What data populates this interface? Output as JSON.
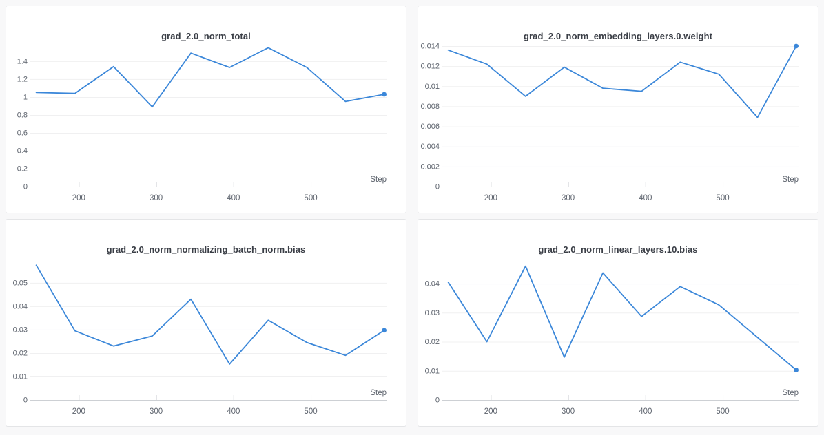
{
  "page": {
    "background": "#f8f8f9"
  },
  "panel_style": {
    "background": "#ffffff",
    "border_color": "#e4e5e7",
    "title_color": "#3a3e46",
    "tick_label_color": "#5e646e",
    "grid_color": "#f0f0f1",
    "axis_color": "#cdd0d4",
    "line_color": "#3b87d9"
  },
  "chart_data": [
    {
      "type": "line",
      "title": "grad_2.0_norm_total",
      "xlabel": "Step",
      "ylabel": "",
      "x": [
        145,
        195,
        245,
        295,
        345,
        395,
        445,
        495,
        545,
        595
      ],
      "values": [
        1.05,
        1.04,
        1.34,
        0.89,
        1.49,
        1.33,
        1.55,
        1.33,
        0.95,
        1.03
      ],
      "xlim": [
        140,
        598
      ],
      "ylim": [
        0,
        1.63
      ],
      "xticks": [
        200,
        300,
        400,
        500
      ],
      "yticks": [
        0,
        0.2,
        0.4,
        0.6,
        0.8,
        1,
        1.2,
        1.4
      ],
      "ytick_labels": [
        "0",
        "0.2",
        "0.4",
        "0.6",
        "0.8",
        "1",
        "1.2",
        "1.4"
      ],
      "grid": true,
      "legend": "none",
      "end_marker": true
    },
    {
      "type": "line",
      "title": "grad_2.0_norm_embedding_layers.0.weight",
      "xlabel": "Step",
      "ylabel": "",
      "x": [
        145,
        195,
        245,
        295,
        345,
        395,
        445,
        495,
        545,
        595
      ],
      "values": [
        0.0136,
        0.0122,
        0.009,
        0.0119,
        0.0098,
        0.0095,
        0.0124,
        0.0112,
        0.0069,
        0.014
      ],
      "xlim": [
        140,
        598
      ],
      "ylim": [
        0,
        0.01455
      ],
      "xticks": [
        200,
        300,
        400,
        500
      ],
      "yticks": [
        0,
        0.002,
        0.004,
        0.006,
        0.008,
        0.01,
        0.012,
        0.014
      ],
      "ytick_labels": [
        "0",
        "0.002",
        "0.004",
        "0.006",
        "0.008",
        "0.01",
        "0.012",
        "0.014"
      ],
      "grid": true,
      "legend": "none",
      "end_marker": true
    },
    {
      "type": "line",
      "title": "grad_2.0_norm_normalizing_batch_norm.bias",
      "xlabel": "Step",
      "ylabel": "",
      "x": [
        145,
        195,
        245,
        295,
        345,
        395,
        445,
        495,
        545,
        595
      ],
      "values": [
        0.0575,
        0.0295,
        0.023,
        0.0273,
        0.043,
        0.0153,
        0.034,
        0.0245,
        0.019,
        0.0297
      ],
      "xlim": [
        140,
        598
      ],
      "ylim": [
        0,
        0.0623
      ],
      "xticks": [
        200,
        300,
        400,
        500
      ],
      "yticks": [
        0,
        0.01,
        0.02,
        0.03,
        0.04,
        0.05
      ],
      "ytick_labels": [
        "0",
        "0.01",
        "0.02",
        "0.03",
        "0.04",
        "0.05"
      ],
      "grid": true,
      "legend": "none",
      "end_marker": true
    },
    {
      "type": "line",
      "title": "grad_2.0_norm_linear_layers.10.bias",
      "xlabel": "Step",
      "ylabel": "",
      "x": [
        145,
        195,
        245,
        295,
        345,
        395,
        445,
        495,
        545,
        595
      ],
      "values": [
        0.0405,
        0.02,
        0.046,
        0.0147,
        0.0437,
        0.0287,
        0.039,
        0.0327,
        0.0215,
        0.0103
      ],
      "xlim": [
        140,
        598
      ],
      "ylim": [
        0,
        0.0502
      ],
      "xticks": [
        200,
        300,
        400,
        500
      ],
      "yticks": [
        0,
        0.01,
        0.02,
        0.03,
        0.04
      ],
      "ytick_labels": [
        "0",
        "0.01",
        "0.02",
        "0.03",
        "0.04"
      ],
      "grid": true,
      "legend": "none",
      "end_marker": true
    }
  ]
}
